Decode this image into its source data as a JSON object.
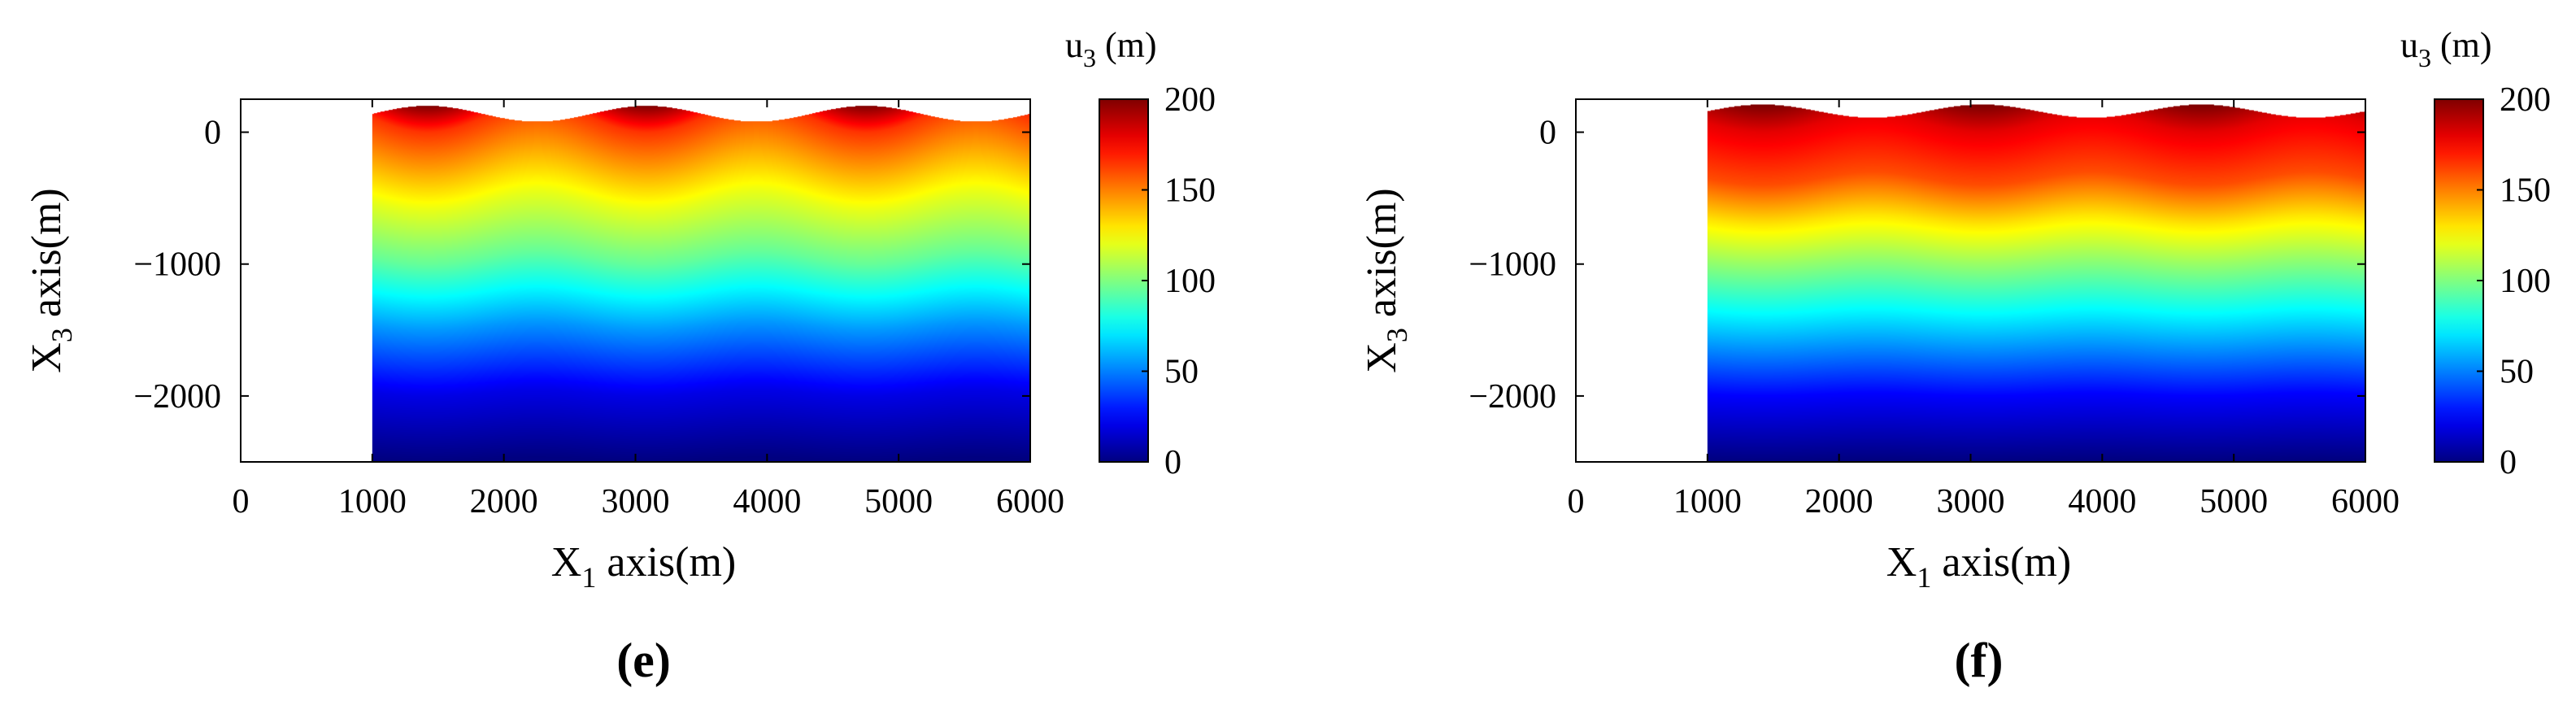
{
  "chart_data": [
    {
      "type": "heatmap",
      "panel_label": "(e)",
      "xlabel": "X",
      "xlabel_sub": "1",
      "xlabel_suffix": " axis(m)",
      "ylabel": "X",
      "ylabel_sub": "3",
      "ylabel_suffix": " axis(m)",
      "xlim": [
        0,
        6000
      ],
      "ylim": [
        -2500,
        250
      ],
      "xticks": [
        0,
        1000,
        2000,
        3000,
        4000,
        5000,
        6000
      ],
      "xtick_labels": [
        "0",
        "1000",
        "2000",
        "3000",
        "4000",
        "5000",
        "6000"
      ],
      "yticks": [
        0,
        -1000,
        -2000
      ],
      "ytick_labels": [
        "0",
        "−1000",
        "−2000"
      ],
      "domain_x": [
        1000,
        6000
      ],
      "domain_bottom": -2500,
      "surface_mean": 140,
      "surface_amplitude": 60,
      "surface_period_m": 1667,
      "surface_peaks_x": [
        1420,
        3090,
        4750
      ],
      "interior_wave_amplitude_top": 200,
      "interior_wave_decay_depth": 1300,
      "colorbar": {
        "title": "u",
        "title_sub": "3",
        "title_suffix": " (m)",
        "range": [
          0,
          200
        ],
        "ticks": [
          0,
          50,
          100,
          150,
          200
        ],
        "tick_labels": [
          "0",
          "50",
          "100",
          "150",
          "200"
        ],
        "colormap": "jet"
      },
      "value_stops": [
        {
          "depth": 200,
          "u3": 200
        },
        {
          "depth": 0,
          "u3": 165
        },
        {
          "depth": -600,
          "u3": 120
        },
        {
          "depth": -1000,
          "u3": 95
        },
        {
          "depth": -1500,
          "u3": 55
        },
        {
          "depth": -2000,
          "u3": 20
        },
        {
          "depth": -2500,
          "u3": 0
        }
      ]
    },
    {
      "type": "heatmap",
      "panel_label": "(f)",
      "xlabel": "X",
      "xlabel_sub": "1",
      "xlabel_suffix": " axis(m)",
      "ylabel": "X",
      "ylabel_sub": "3",
      "ylabel_suffix": " axis(m)",
      "xlim": [
        0,
        6000
      ],
      "ylim": [
        -2500,
        250
      ],
      "xticks": [
        0,
        1000,
        2000,
        3000,
        4000,
        5000,
        6000
      ],
      "xtick_labels": [
        "0",
        "1000",
        "2000",
        "3000",
        "4000",
        "5000",
        "6000"
      ],
      "yticks": [
        0,
        -1000,
        -2000
      ],
      "ytick_labels": [
        "0",
        "−1000",
        "−2000"
      ],
      "domain_x": [
        1000,
        6000
      ],
      "domain_bottom": -2500,
      "surface_mean": 160,
      "surface_amplitude": 50,
      "surface_period_m": 1667,
      "surface_peaks_x": [
        1420,
        3090,
        4750
      ],
      "interior_wave_amplitude_top": 130,
      "interior_wave_decay_depth": 1100,
      "colorbar": {
        "title": "u",
        "title_sub": "3",
        "title_suffix": " (m)",
        "range": [
          0,
          200
        ],
        "ticks": [
          0,
          50,
          100,
          150,
          200
        ],
        "tick_labels": [
          "0",
          "50",
          "100",
          "150",
          "200"
        ],
        "colormap": "jet"
      },
      "value_stops": [
        {
          "depth": 200,
          "u3": 200
        },
        {
          "depth": 0,
          "u3": 180
        },
        {
          "depth": -400,
          "u3": 160
        },
        {
          "depth": -700,
          "u3": 130
        },
        {
          "depth": -1000,
          "u3": 105
        },
        {
          "depth": -1500,
          "u3": 65
        },
        {
          "depth": -2000,
          "u3": 25
        },
        {
          "depth": -2500,
          "u3": 0
        }
      ]
    }
  ]
}
